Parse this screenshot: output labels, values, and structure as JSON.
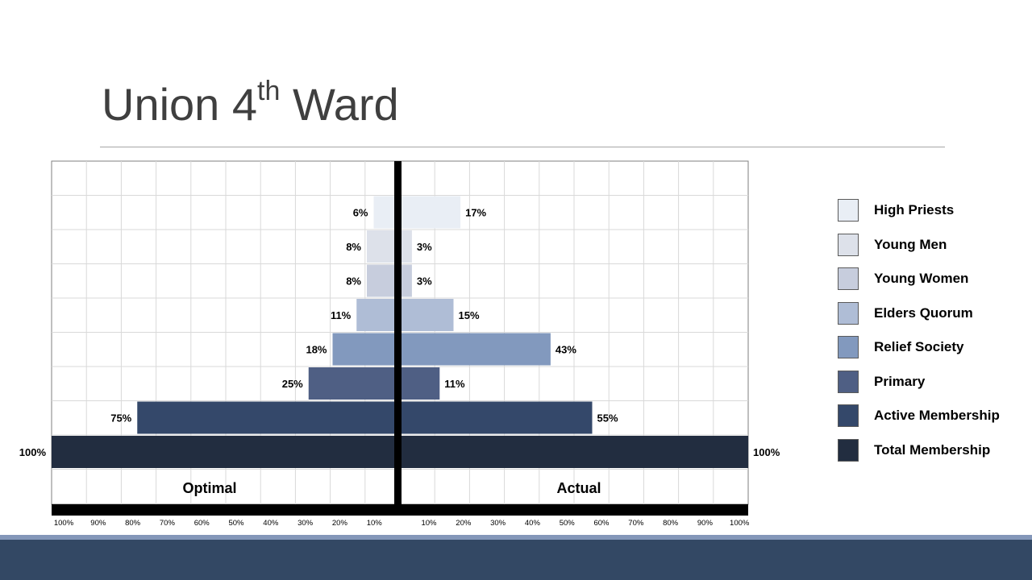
{
  "slide": {
    "title_main": "Union 4",
    "title_sup": "th",
    "title_end": " Ward"
  },
  "chart_data": {
    "type": "bar",
    "orientation": "horizontal",
    "layout": "population-pyramid",
    "categories": [
      "High Priests",
      "Young Men",
      "Young Women",
      "Elders Quorum",
      "Relief Society",
      "Primary",
      "Active Membership",
      "Total Membership"
    ],
    "series": [
      {
        "name": "Optimal",
        "values": [
          6,
          8,
          8,
          11,
          18,
          25,
          75,
          100
        ]
      },
      {
        "name": "Actual",
        "values": [
          17,
          3,
          3,
          15,
          43,
          11,
          55,
          100
        ]
      }
    ],
    "value_labels": {
      "Optimal": [
        "6%",
        "8%",
        "8%",
        "11%",
        "18%",
        "25%",
        "75%",
        "100%"
      ],
      "Actual": [
        "17%",
        "3%",
        "3%",
        "15%",
        "43%",
        "11%",
        "55%",
        "100%"
      ]
    },
    "colors": [
      "#e9eef5",
      "#dde1ea",
      "#c7cddd",
      "#afbdd6",
      "#8299be",
      "#4f5f84",
      "#34486a",
      "#222d40"
    ],
    "xlim": [
      0,
      100
    ],
    "x_tick_labels_left": [
      "100%",
      "90%",
      "80%",
      "70%",
      "60%",
      "50%",
      "40%",
      "30%",
      "20%",
      "10%"
    ],
    "x_tick_labels_right": [
      "10%",
      "20%",
      "30%",
      "40%",
      "50%",
      "60%",
      "70%",
      "80%",
      "90%",
      "100%"
    ],
    "grid": true,
    "legend_position": "right"
  }
}
